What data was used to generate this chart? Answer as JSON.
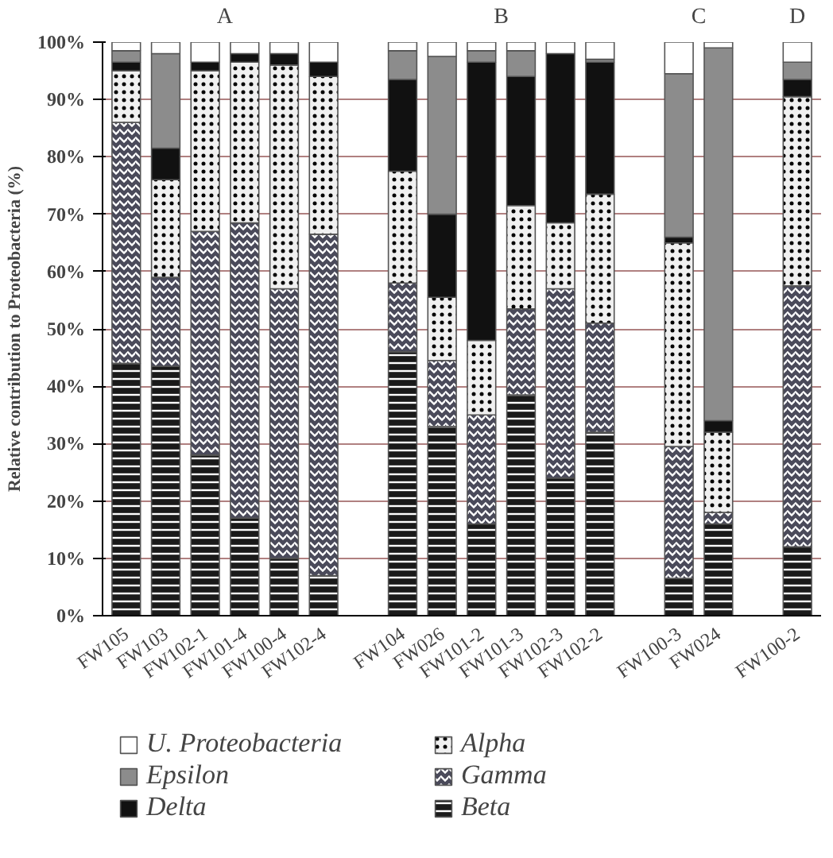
{
  "chart_data": {
    "type": "bar",
    "stacked": true,
    "ylabel": "Relative contribution to Proteobacteria (%)",
    "categories": [
      "FW105",
      "FW103",
      "FW102-1",
      "FW101-4",
      "FW100-4",
      "FW102-4",
      null,
      "FW104",
      "FW026",
      "FW101-2",
      "FW101-3",
      "FW102-3",
      "FW102-2",
      null,
      "FW100-3",
      "FW024",
      null,
      "FW100-2"
    ],
    "series": [
      {
        "name": "Beta",
        "color": "#1a1a1a",
        "values": [
          44,
          43.5,
          28,
          17,
          10,
          7,
          null,
          46,
          33,
          16,
          38.5,
          24,
          32,
          null,
          6.5,
          16,
          null,
          12
        ]
      },
      {
        "name": "Gamma",
        "color": "#4a4a5a",
        "values": [
          42,
          15.5,
          39,
          51.5,
          47,
          59.5,
          null,
          12,
          11.5,
          19,
          15,
          33,
          19,
          null,
          23,
          2,
          null,
          45.5
        ]
      },
      {
        "name": "Alpha",
        "color": "#f0f0f0",
        "values": [
          9,
          17,
          28,
          28,
          39,
          27.5,
          null,
          19.5,
          11,
          13,
          18,
          11.5,
          22.5,
          null,
          35.5,
          14,
          null,
          33
        ]
      },
      {
        "name": "Delta",
        "color": "#111111",
        "values": [
          1.5,
          5.5,
          1.5,
          1.5,
          2,
          2.5,
          null,
          16,
          14.5,
          48.5,
          22.5,
          29.5,
          23,
          null,
          1,
          2,
          null,
          3
        ]
      },
      {
        "name": "Epsilon",
        "color": "#8c8c8c",
        "values": [
          2,
          16.5,
          0,
          0,
          0,
          0,
          null,
          5,
          27.5,
          2,
          4.5,
          0,
          0.5,
          null,
          28.5,
          65,
          null,
          3
        ]
      },
      {
        "name": "U. Proteobacteria",
        "color": "#ffffff",
        "values": [
          1.5,
          2,
          3.5,
          2,
          2,
          3.5,
          null,
          1.5,
          2.5,
          1.5,
          1.5,
          2,
          3,
          null,
          5.5,
          1,
          null,
          3.5
        ]
      }
    ],
    "annotations": [
      "A",
      "B",
      "C",
      "D"
    ],
    "ylim": [
      0,
      100
    ],
    "yticks": [
      {
        "value": 0,
        "label": "0%"
      },
      {
        "value": 10,
        "label": "10%"
      },
      {
        "value": 20,
        "label": "20%"
      },
      {
        "value": 30,
        "label": "30%"
      },
      {
        "value": 40,
        "label": "40%"
      },
      {
        "value": 50,
        "label": "50%"
      },
      {
        "value": 60,
        "label": "60%"
      },
      {
        "value": 70,
        "label": "70%"
      },
      {
        "value": 80,
        "label": "80%"
      },
      {
        "value": 90,
        "label": "90%"
      },
      {
        "value": 100,
        "label": "100%"
      }
    ],
    "grid": "y",
    "legend": "bottom"
  }
}
